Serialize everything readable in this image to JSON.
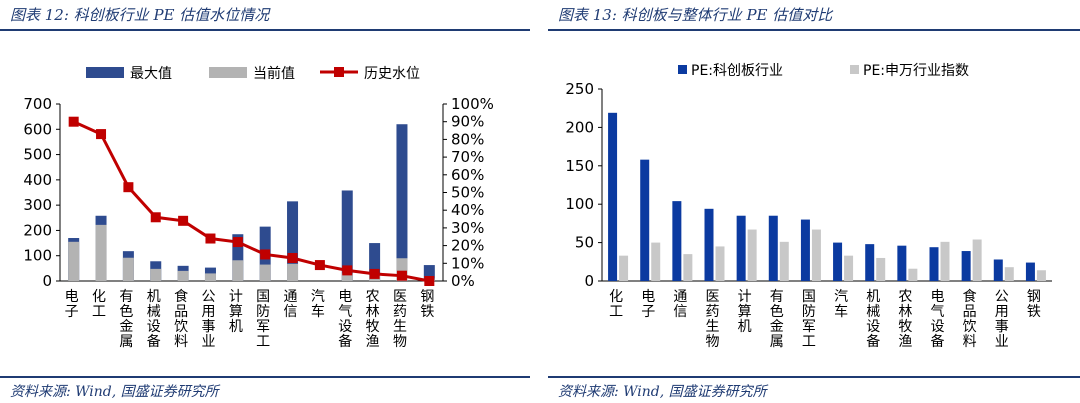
{
  "left": {
    "title": "图表 12:  科创板行业 PE 估值水位情况",
    "source": "资料来源:  Wind, 国盛证券研究所",
    "legend": [
      "最大值",
      "当前值",
      "历史水位"
    ],
    "colors": {
      "max": "#2e4b8f",
      "current": "#b3b3b3",
      "line": "#c00000"
    },
    "chart_data": {
      "type": "bar",
      "categories": [
        "电子",
        "化工",
        "有色金属",
        "机械设备",
        "食品饮料",
        "公用事业",
        "计算机",
        "国防军工",
        "通信",
        "汽车",
        "电气设备",
        "农林牧渔",
        "医药生物",
        "钢铁"
      ],
      "series": [
        {
          "name": "最大值",
          "axis": "left",
          "values": [
            170,
            258,
            118,
            78,
            60,
            53,
            185,
            215,
            315,
            0,
            358,
            150,
            620,
            63
          ]
        },
        {
          "name": "当前值",
          "axis": "left",
          "values": [
            155,
            222,
            92,
            48,
            40,
            30,
            82,
            65,
            68,
            0,
            30,
            28,
            90,
            10
          ]
        },
        {
          "name": "历史水位",
          "axis": "right",
          "type": "line",
          "values": [
            90,
            83,
            53,
            36,
            34,
            24,
            22,
            15,
            13,
            9,
            6,
            4,
            3,
            0
          ]
        }
      ],
      "ylim": [
        0,
        700
      ],
      "yticks": [
        "0",
        "100",
        "200",
        "300",
        "400",
        "500",
        "600",
        "700"
      ],
      "y2lim": [
        0,
        100
      ],
      "y2ticks": [
        "0%",
        "10%",
        "20%",
        "30%",
        "40%",
        "50%",
        "60%",
        "70%",
        "80%",
        "90%",
        "100%"
      ]
    }
  },
  "right": {
    "title": "图表 13:  科创板与整体行业 PE 估值对比",
    "source": "资料来源:  Wind, 国盛证券研究所",
    "legend": [
      "PE:科创板行业",
      "PE:申万行业指数"
    ],
    "colors": {
      "star": "#0b3aa0",
      "sw": "#c8c8c8"
    },
    "chart_data": {
      "type": "bar",
      "categories": [
        "化工",
        "电子",
        "通信",
        "医药生物",
        "计算机",
        "有色金属",
        "国防军工",
        "汽车",
        "机械设备",
        "农林牧渔",
        "电气设备",
        "食品饮料",
        "公用事业",
        "钢铁"
      ],
      "series": [
        {
          "name": "PE:科创板行业",
          "values": [
            219,
            158,
            104,
            94,
            85,
            85,
            80,
            50,
            48,
            46,
            44,
            39,
            28,
            24
          ]
        },
        {
          "name": "PE:申万行业指数",
          "values": [
            33,
            50,
            35,
            45,
            67,
            51,
            67,
            33,
            30,
            16,
            51,
            54,
            18,
            14
          ]
        }
      ],
      "ylim": [
        0,
        250
      ],
      "yticks": [
        "0",
        "50",
        "100",
        "150",
        "200",
        "250"
      ]
    }
  }
}
